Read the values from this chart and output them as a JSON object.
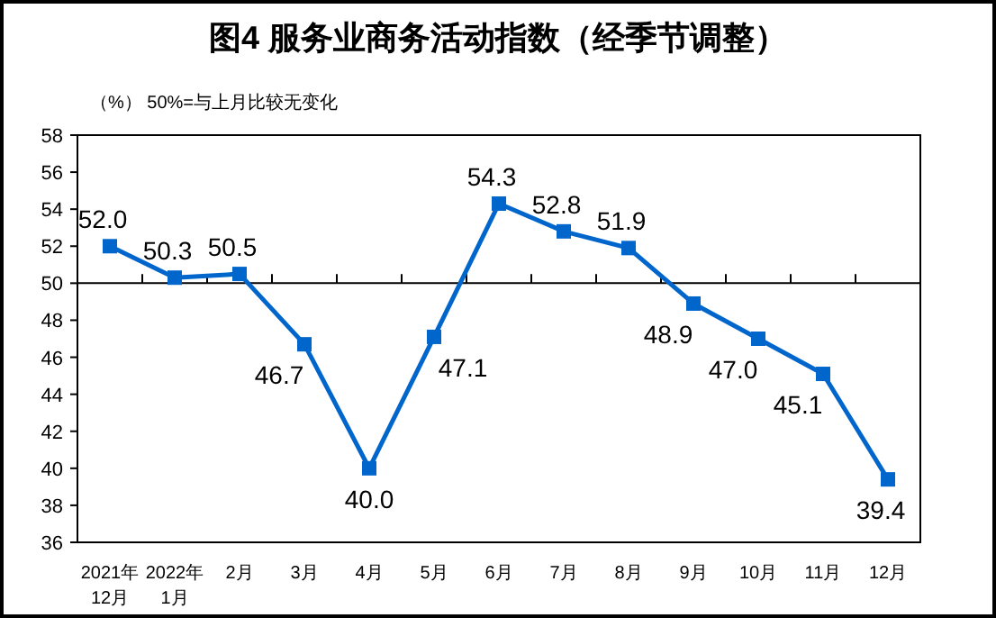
{
  "chart_data": {
    "type": "line",
    "title": "图4  服务业商务活动指数（经季节调整）",
    "subtitle": "（%）   50%=与上月比较无变化",
    "categories": [
      "2021年\n12月",
      "2022年\n1月",
      "2月",
      "3月",
      "4月",
      "5月",
      "6月",
      "7月",
      "8月",
      "9月",
      "10月",
      "11月",
      "12月"
    ],
    "series": [
      {
        "color": "#0066cc",
        "values": [
          52.0,
          50.3,
          50.5,
          46.7,
          40.0,
          47.1,
          54.3,
          52.8,
          51.9,
          48.9,
          47.0,
          45.1,
          39.4
        ],
        "value_labels": [
          "52.0",
          "50.3",
          "50.5",
          "46.7",
          "40.0",
          "47.1",
          "54.3",
          "52.8",
          "51.9",
          "48.9",
          "47.0",
          "45.1",
          "39.4"
        ]
      }
    ],
    "ylim": [
      36,
      58
    ],
    "yticks": [
      36,
      38,
      40,
      42,
      44,
      46,
      48,
      50,
      52,
      54,
      56,
      58
    ],
    "ref_lines": [
      {
        "axis": "y",
        "value": 50,
        "color": "#000000"
      }
    ],
    "marker": "square",
    "grid": false
  }
}
